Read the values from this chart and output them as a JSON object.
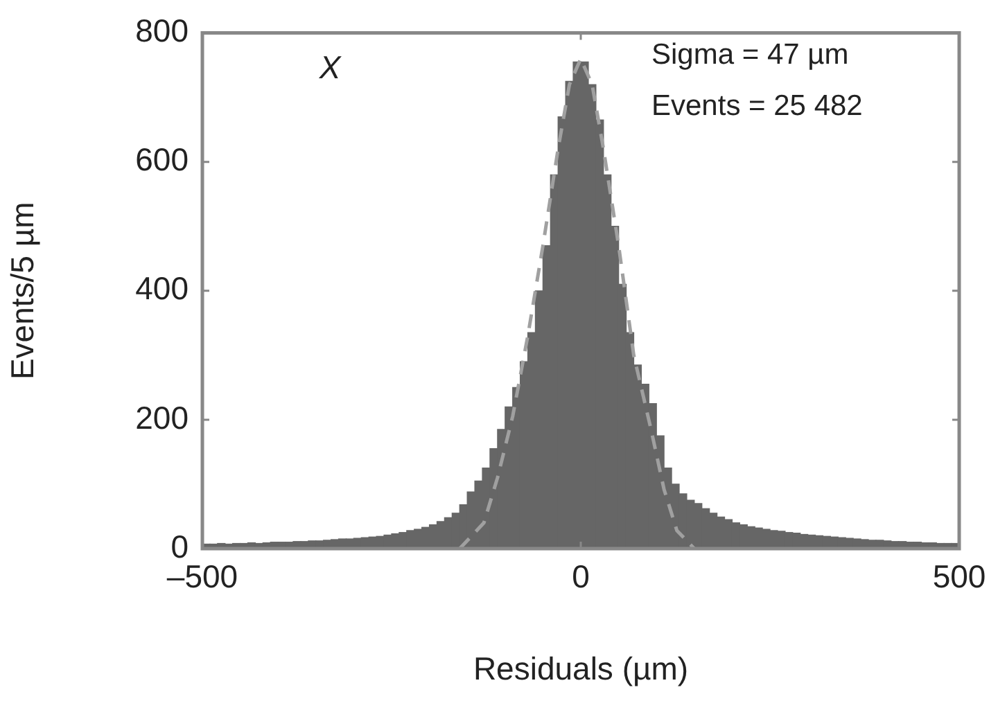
{
  "chart_data": {
    "type": "histogram",
    "xlabel": "Residuals (µm)",
    "ylabel": "Events/5 µm",
    "bins": [
      -500,
      -490,
      -480,
      -470,
      -460,
      -450,
      -440,
      -430,
      -420,
      -410,
      -400,
      -390,
      -380,
      -370,
      -360,
      -350,
      -340,
      -330,
      -320,
      -310,
      -300,
      -290,
      -280,
      -270,
      -260,
      -250,
      -240,
      -230,
      -220,
      -210,
      -200,
      -190,
      -180,
      -170,
      -160,
      -150,
      -140,
      -130,
      -120,
      -110,
      -100,
      -90,
      -80,
      -70,
      -60,
      -50,
      -40,
      -30,
      -20,
      -10,
      0,
      10,
      20,
      30,
      40,
      50,
      60,
      70,
      80,
      90,
      100,
      110,
      120,
      130,
      140,
      150,
      160,
      170,
      180,
      190,
      200,
      210,
      220,
      230,
      240,
      250,
      260,
      270,
      280,
      290,
      300,
      310,
      320,
      330,
      340,
      350,
      360,
      370,
      380,
      390,
      400,
      410,
      420,
      430,
      440,
      450,
      460,
      470,
      480,
      490,
      500
    ],
    "values": [
      7,
      7,
      8,
      7,
      8,
      8,
      9,
      8,
      9,
      10,
      10,
      10,
      11,
      11,
      12,
      12,
      13,
      14,
      15,
      15,
      16,
      17,
      18,
      19,
      21,
      23,
      25,
      28,
      30,
      33,
      37,
      42,
      48,
      55,
      68,
      88,
      105,
      125,
      155,
      185,
      220,
      250,
      290,
      335,
      400,
      470,
      580,
      670,
      725,
      755,
      755,
      720,
      665,
      580,
      500,
      410,
      335,
      285,
      255,
      225,
      175,
      125,
      100,
      85,
      75,
      70,
      62,
      55,
      49,
      45,
      40,
      37,
      34,
      32,
      30,
      28,
      27,
      25,
      24,
      22,
      21,
      20,
      19,
      18,
      17,
      16,
      15,
      14,
      13,
      13,
      12,
      11,
      11,
      10,
      10,
      9,
      9,
      8,
      8,
      8
    ],
    "color": "#666666",
    "series": [
      {
        "type": "line",
        "x": [
          -160,
          -128,
          -110,
          -90,
          -70,
          -50,
          -30,
          -15,
          0,
          15,
          30,
          50,
          70,
          93,
          110,
          127,
          150
        ],
        "values": [
          0,
          40,
          110,
          205,
          330,
          470,
          620,
          720,
          760,
          720,
          620,
          470,
          300,
          184,
          92,
          28,
          0
        ],
        "color": "#a0a0a0",
        "line_style": "dashed"
      }
    ],
    "xlim": [
      -500,
      500
    ],
    "xticks": [
      {
        "value": -500,
        "label": "–500"
      },
      0,
      500
    ],
    "ylim": [
      0,
      800
    ],
    "yticks": [
      0,
      200,
      400,
      600,
      800
    ],
    "annotations": [
      "X",
      "Sigma = 47 µm",
      "Events = 25 482"
    ]
  }
}
